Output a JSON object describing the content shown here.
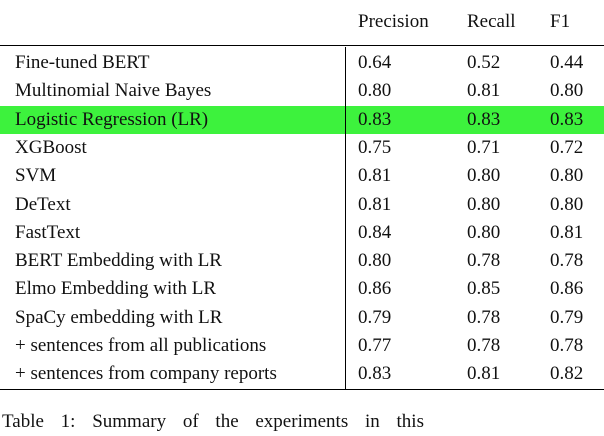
{
  "table": {
    "header": [
      "Precision",
      "Recall",
      "F1"
    ],
    "rows": [
      [
        "Fine-tuned BERT",
        "0.64",
        "0.52",
        "0.44"
      ],
      [
        "Multinomial Naive Bayes",
        "0.80",
        "0.81",
        "0.80"
      ],
      [
        "Logistic Regression (LR)",
        "0.83",
        "0.83",
        "0.83"
      ],
      [
        "XGBoost",
        "0.75",
        "0.71",
        "0.72"
      ],
      [
        "SVM",
        "0.81",
        "0.80",
        "0.80"
      ],
      [
        "DeText",
        "0.81",
        "0.80",
        "0.80"
      ],
      [
        "FastText",
        "0.84",
        "0.80",
        "0.81"
      ],
      [
        "BERT Embedding with LR",
        "0.80",
        "0.78",
        "0.78"
      ],
      [
        "Elmo Embedding with LR",
        "0.86",
        "0.85",
        "0.86"
      ],
      [
        "SpaCy embedding with LR",
        "0.79",
        "0.78",
        "0.79"
      ],
      [
        "+ sentences from all publications",
        "0.77",
        "0.78",
        "0.78"
      ],
      [
        "+ sentences from company reports",
        "0.83",
        "0.81",
        "0.82"
      ]
    ]
  },
  "caption": "Table 1: Summary of the experiments in this"
}
